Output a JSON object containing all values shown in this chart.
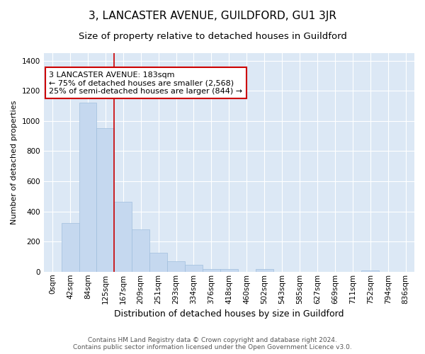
{
  "title": "3, LANCASTER AVENUE, GUILDFORD, GU1 3JR",
  "subtitle": "Size of property relative to detached houses in Guildford",
  "xlabel": "Distribution of detached houses by size in Guildford",
  "ylabel": "Number of detached properties",
  "footer_line1": "Contains HM Land Registry data © Crown copyright and database right 2024.",
  "footer_line2": "Contains public sector information licensed under the Open Government Licence v3.0.",
  "bar_labels": [
    "0sqm",
    "42sqm",
    "84sqm",
    "125sqm",
    "167sqm",
    "209sqm",
    "251sqm",
    "293sqm",
    "334sqm",
    "376sqm",
    "418sqm",
    "460sqm",
    "502sqm",
    "543sqm",
    "585sqm",
    "627sqm",
    "669sqm",
    "711sqm",
    "752sqm",
    "794sqm",
    "836sqm"
  ],
  "bar_values": [
    0,
    325,
    1120,
    950,
    465,
    280,
    125,
    70,
    45,
    20,
    20,
    0,
    20,
    0,
    0,
    0,
    0,
    0,
    10,
    0,
    0
  ],
  "bar_color": "#c5d8ef",
  "bar_edge_color": "#a0bedd",
  "vline_x": 4.0,
  "vline_color": "#cc0000",
  "annotation_text": "3 LANCASTER AVENUE: 183sqm\n← 75% of detached houses are smaller (2,568)\n25% of semi-detached houses are larger (844) →",
  "annotation_box_color": "#ffffff",
  "annotation_box_edge_color": "#cc0000",
  "ylim": [
    0,
    1450
  ],
  "yticks": [
    0,
    200,
    400,
    600,
    800,
    1000,
    1200,
    1400
  ],
  "fig_background_color": "#ffffff",
  "plot_background_color": "#dce8f5",
  "title_fontsize": 11,
  "subtitle_fontsize": 9.5,
  "tick_fontsize": 7.5,
  "ylabel_fontsize": 8,
  "xlabel_fontsize": 9,
  "annotation_fontsize": 8,
  "footer_fontsize": 6.5
}
